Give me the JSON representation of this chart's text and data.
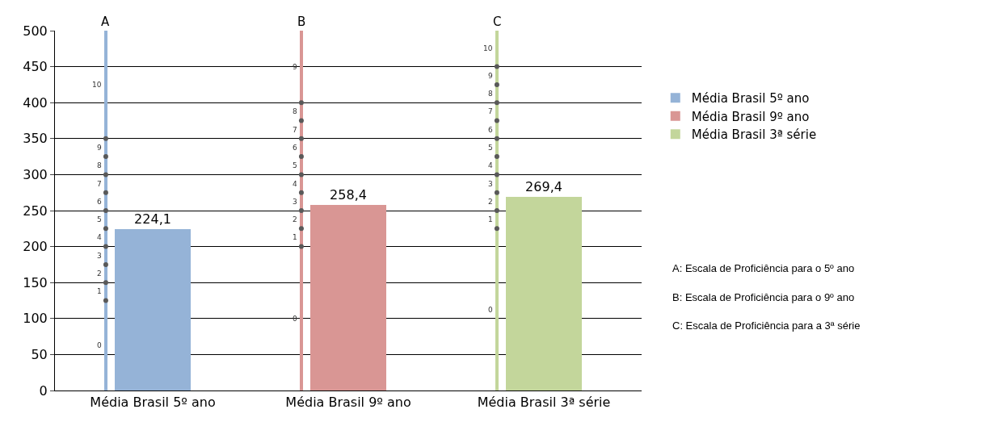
{
  "chart_data": {
    "type": "bar",
    "categories": [
      "Média Brasil 5º ano",
      "Média Brasil 9º ano",
      "Média Brasil 3ª série"
    ],
    "series": [
      {
        "name": "Média Brasil 5º ano",
        "color": "#95b3d7",
        "values": [
          224.1,
          null,
          null
        ],
        "value_labels": [
          "224,1",
          null,
          null
        ]
      },
      {
        "name": "Média Brasil 9º ano",
        "color": "#d99694",
        "values": [
          null,
          258.4,
          null
        ],
        "value_labels": [
          null,
          "258,4",
          null
        ]
      },
      {
        "name": "Média Brasil 3ª série",
        "color": "#c3d69b",
        "values": [
          null,
          null,
          269.4
        ],
        "value_labels": [
          null,
          null,
          "269,4"
        ]
      },
      {
        "type": "bar",
        "colors": [
          "#95b3d7",
          "#d99694",
          "#c3d69b"
        ],
        "values": [
          500,
          500,
          500
        ]
      },
      {
        "type": "scatter",
        "marker": "circle",
        "color": "#595959",
        "x": [
          "Média Brasil 5º ano",
          "Média Brasil 5º ano",
          "Média Brasil 5º ano",
          "Média Brasil 5º ano",
          "Média Brasil 5º ano",
          "Média Brasil 5º ano",
          "Média Brasil 5º ano",
          "Média Brasil 5º ano",
          "Média Brasil 5º ano",
          "Média Brasil 5º ano",
          "Média Brasil 9º ano",
          "Média Brasil 9º ano",
          "Média Brasil 9º ano",
          "Média Brasil 9º ano",
          "Média Brasil 9º ano",
          "Média Brasil 9º ano",
          "Média Brasil 9º ano",
          "Média Brasil 9º ano",
          "Média Brasil 9º ano",
          "Média Brasil 3ª série",
          "Média Brasil 3ª série",
          "Média Brasil 3ª série",
          "Média Brasil 3ª série",
          "Média Brasil 3ª série",
          "Média Brasil 3ª série",
          "Média Brasil 3ª série",
          "Média Brasil 3ª série",
          "Média Brasil 3ª série",
          "Média Brasil 3ª série"
        ],
        "values": [
          125,
          150,
          175,
          200,
          225,
          250,
          275,
          300,
          325,
          350,
          200,
          225,
          250,
          275,
          300,
          325,
          350,
          375,
          400,
          225,
          250,
          275,
          300,
          325,
          350,
          375,
          400,
          425,
          450
        ]
      }
    ],
    "ylim": [
      0,
      500
    ],
    "yticks": [
      0,
      50,
      100,
      150,
      200,
      250,
      300,
      350,
      400,
      450,
      500
    ],
    "grid": "y",
    "legend": "right",
    "annotations": [
      "A",
      "B",
      "C",
      "A: Escala de Proficiência para o 5º ano",
      "B: Escala de Proficiência para o 9º ano",
      "C: Escala de Proficiência para a 3ª série",
      "0",
      "1",
      "2",
      "3",
      "4",
      "5",
      "6",
      "7",
      "8",
      "9",
      "10",
      "0",
      "1",
      "2",
      "3",
      "4",
      "5",
      "6",
      "7",
      "8",
      "9",
      "0",
      "1",
      "2",
      "3",
      "4",
      "5",
      "6",
      "7",
      "8",
      "9",
      "10"
    ]
  }
}
